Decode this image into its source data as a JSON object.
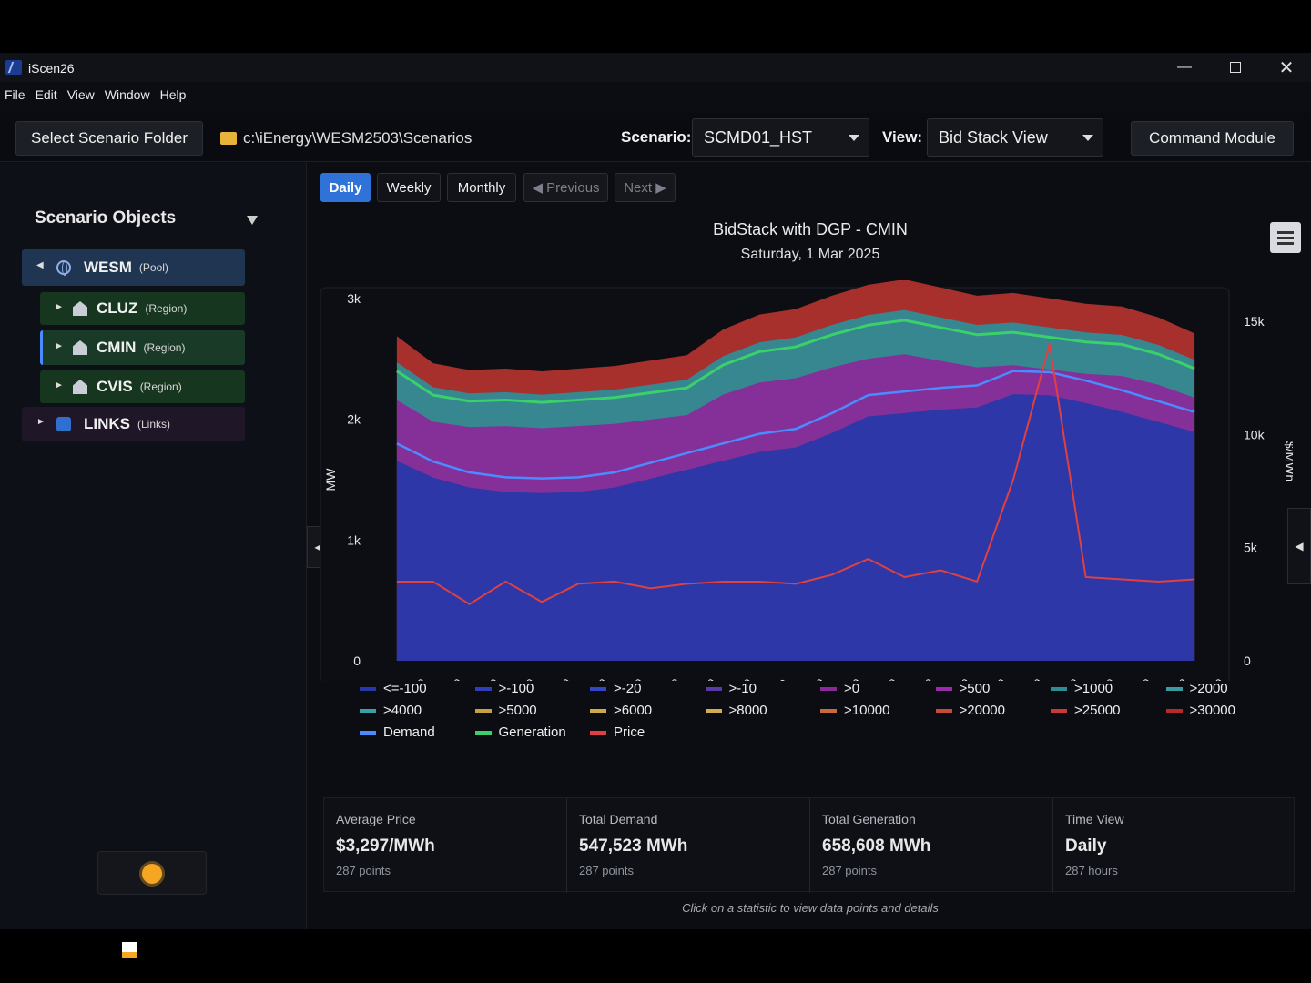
{
  "app": {
    "title": "iScen26"
  },
  "menu": [
    "File",
    "Edit",
    "View",
    "Window",
    "Help"
  ],
  "toolbar": {
    "select_folder_label": "Select Scenario Folder",
    "folder_path": "c:\\iEnergy\\WESM2503\\Scenarios",
    "scenario_label": "Scenario:",
    "scenario_value": "SCMD01_HST",
    "view_label": "View:",
    "view_value": "Bid Stack View",
    "command_module_label": "Command Module"
  },
  "sidebar": {
    "title": "Scenario Objects",
    "items": [
      {
        "name": "WESM",
        "type": "(Pool)"
      },
      {
        "name": "CLUZ",
        "type": "(Region)"
      },
      {
        "name": "CMIN",
        "type": "(Region)"
      },
      {
        "name": "CVIS",
        "type": "(Region)"
      },
      {
        "name": "LINKS",
        "type": "(Links)"
      }
    ]
  },
  "period_tabs": {
    "daily": "Daily",
    "weekly": "Weekly",
    "monthly": "Monthly",
    "previous": "◀ Previous",
    "next": "Next ▶"
  },
  "chart": {
    "title": "BidStack with DGP - CMIN",
    "subtitle": "Saturday, 1 Mar 2025"
  },
  "chart_data": {
    "type": "area",
    "title": "BidStack with DGP - CMIN",
    "subtitle": "Saturday, 1 Mar 2025",
    "ylabel": "MW",
    "y2label": "$/MWh",
    "ylim": [
      0,
      3000
    ],
    "y2lim": [
      0,
      16000
    ],
    "y_ticks": [
      "0",
      "1k",
      "2k",
      "3k"
    ],
    "y2_ticks": [
      "0",
      "5k",
      "10k",
      "15k"
    ],
    "categories": [
      "01:00",
      "02:00",
      "03:00",
      "04:00",
      "05:00",
      "06:00",
      "07:00",
      "08:00",
      "09:00",
      "10:00",
      "11:00",
      "12:00",
      "13:00",
      "14:00",
      "15:00",
      "16:00",
      "17:00",
      "18:00",
      "19:00",
      "20:00",
      "21:00",
      "22:00",
      "23:00"
    ],
    "series": [
      {
        "name": "Demand",
        "values": [
          1800,
          1650,
          1560,
          1520,
          1510,
          1520,
          1560,
          1640,
          1720,
          1800,
          1880,
          1920,
          2050,
          2200,
          2230,
          2260,
          2280,
          2400,
          2390,
          2320,
          2240,
          2150,
          2060
        ]
      },
      {
        "name": "Generation",
        "values": [
          2400,
          2200,
          2150,
          2160,
          2140,
          2160,
          2180,
          2220,
          2260,
          2450,
          2560,
          2600,
          2700,
          2780,
          2820,
          2760,
          2700,
          2720,
          2680,
          2640,
          2620,
          2540,
          2420
        ]
      },
      {
        "name": "Price",
        "values": [
          3500,
          3500,
          2500,
          3500,
          2600,
          3400,
          3500,
          3200,
          3400,
          3500,
          3500,
          3400,
          3800,
          4500,
          3700,
          4000,
          3500,
          8000,
          14000,
          3700,
          3600,
          3500,
          3600
        ]
      }
    ],
    "legend_entries": [
      "<=-100",
      ">-100",
      ">-20",
      ">-10",
      ">0",
      ">500",
      ">1000",
      ">2000",
      ">4000",
      ">5000",
      ">6000",
      ">8000",
      ">10000",
      ">20000",
      ">25000",
      ">30000",
      "Demand",
      "Generation",
      "Price"
    ],
    "legend_colors": [
      "#2838a8",
      "#2e3fb8",
      "#3446c4",
      "#5a3aa8",
      "#8a2a9a",
      "#9a2aa8",
      "#2f8c96",
      "#3a9aa0",
      "#3aa0a8",
      "#c8a040",
      "#d0a848",
      "#d4ac50",
      "#c86a3c",
      "#c84a3a",
      "#c83a3a",
      "#b82a2a",
      "#4a8cff",
      "#3ad06a",
      "#e04040"
    ],
    "legend_placement": "bottom"
  },
  "stats": [
    {
      "label": "Average Price",
      "value": "$3,297/MWh",
      "sub": "287 points"
    },
    {
      "label": "Total Demand",
      "value": "547,523 MWh",
      "sub": "287 points"
    },
    {
      "label": "Total Generation",
      "value": "658,608 MWh",
      "sub": "287 points"
    },
    {
      "label": "Time View",
      "value": "Daily",
      "sub": "287 hours"
    }
  ],
  "hint": "Click on a statistic to view data points and details"
}
